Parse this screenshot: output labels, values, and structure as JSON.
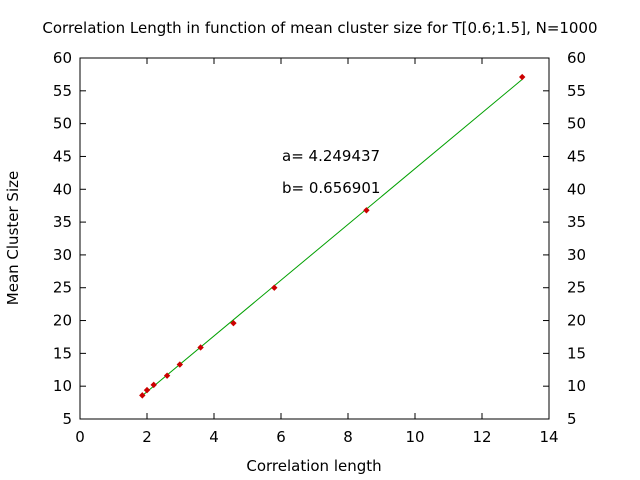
{
  "chart_data": {
    "type": "scatter",
    "title": "Correlation Length in function of mean cluster size for T[0.6;1.5], N=1000",
    "xlabel": "Correlation length",
    "ylabel": "Mean Cluster Size",
    "xlim": [
      0,
      14
    ],
    "ylim": [
      5,
      60
    ],
    "x_ticks": [
      "0",
      "2",
      "4",
      "6",
      "8",
      "10",
      "12",
      "14"
    ],
    "y_ticks": [
      "5",
      "10",
      "15",
      "20",
      "25",
      "30",
      "35",
      "40",
      "45",
      "50",
      "55",
      "60"
    ],
    "grid": false,
    "series": [
      {
        "color": "#cc0000",
        "marker": "diamond",
        "x": [
          1.86,
          2.0,
          2.2,
          2.6,
          2.98,
          3.6,
          4.58,
          5.8,
          8.55,
          13.2
        ],
        "y": [
          8.6,
          9.4,
          10.2,
          11.6,
          13.3,
          15.9,
          19.6,
          25.0,
          36.8,
          57.1
        ]
      },
      {
        "color": "#00a000",
        "type": "line",
        "x": [
          1.86,
          13.2
        ],
        "y": [
          8.56,
          56.74
        ]
      }
    ],
    "annotations": [
      "a= 4.249437",
      "b= 0.656901"
    ]
  }
}
